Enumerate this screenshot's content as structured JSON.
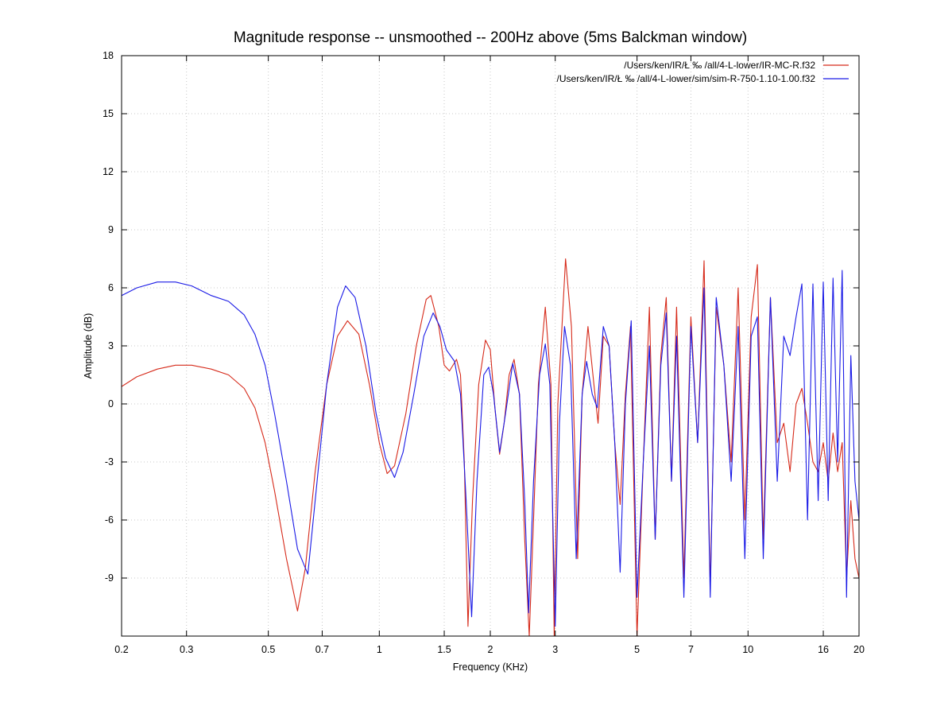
{
  "chart_data": {
    "type": "line",
    "title": "Magnitude response -- unsmoothed -- 200Hz above (5ms Balckman window)",
    "xlabel": "Frequency (KHz)",
    "ylabel": "Amplitude (dB)",
    "x_scale": "log",
    "xlim": [
      0.2,
      20
    ],
    "ylim": [
      -12,
      18
    ],
    "x_ticks": [
      0.2,
      0.3,
      0.5,
      0.7,
      1,
      1.5,
      2,
      3,
      5,
      7,
      10,
      16,
      20
    ],
    "x_tick_labels": [
      "0.2",
      "0.3",
      "0.5",
      "0.7",
      "1",
      "1.5",
      "2",
      "3",
      "5",
      "7",
      "10",
      "16",
      "20"
    ],
    "y_ticks": [
      -9,
      -6,
      -3,
      0,
      3,
      6,
      9,
      12,
      15,
      18
    ],
    "y_tick_labels": [
      "-9",
      "-6",
      "-3",
      "0",
      "3",
      "6",
      "9",
      "12",
      "15",
      "18"
    ],
    "grid": true,
    "legend_position": "top-right",
    "series": [
      {
        "name": "/Users/ken/IR/Ł      ‰  /all/4-L-lower/IR-MC-R.f32",
        "color": "#d62a1a",
        "points": [
          [
            0.2,
            0.9
          ],
          [
            0.22,
            1.4
          ],
          [
            0.25,
            1.8
          ],
          [
            0.28,
            2.0
          ],
          [
            0.31,
            2.0
          ],
          [
            0.35,
            1.8
          ],
          [
            0.39,
            1.5
          ],
          [
            0.43,
            0.8
          ],
          [
            0.46,
            -0.2
          ],
          [
            0.49,
            -2.0
          ],
          [
            0.52,
            -4.5
          ],
          [
            0.56,
            -8.0
          ],
          [
            0.6,
            -10.7
          ],
          [
            0.63,
            -8.5
          ],
          [
            0.67,
            -3.5
          ],
          [
            0.72,
            1.0
          ],
          [
            0.77,
            3.5
          ],
          [
            0.82,
            4.3
          ],
          [
            0.88,
            3.6
          ],
          [
            0.94,
            1.0
          ],
          [
            1.0,
            -2.0
          ],
          [
            1.05,
            -3.6
          ],
          [
            1.1,
            -3.2
          ],
          [
            1.18,
            -0.5
          ],
          [
            1.26,
            3.0
          ],
          [
            1.34,
            5.4
          ],
          [
            1.38,
            5.6
          ],
          [
            1.45,
            4.0
          ],
          [
            1.5,
            2.0
          ],
          [
            1.55,
            1.7
          ],
          [
            1.62,
            2.3
          ],
          [
            1.66,
            1.5
          ],
          [
            1.7,
            -3.0
          ],
          [
            1.74,
            -11.5
          ],
          [
            1.79,
            -5.0
          ],
          [
            1.86,
            1.0
          ],
          [
            1.94,
            3.3
          ],
          [
            2.0,
            2.8
          ],
          [
            2.06,
            -0.3
          ],
          [
            2.12,
            -2.6
          ],
          [
            2.18,
            -1.0
          ],
          [
            2.25,
            1.5
          ],
          [
            2.32,
            2.3
          ],
          [
            2.4,
            0.5
          ],
          [
            2.48,
            -7.0
          ],
          [
            2.55,
            -12.0
          ],
          [
            2.62,
            -6.0
          ],
          [
            2.7,
            1.0
          ],
          [
            2.82,
            5.0
          ],
          [
            2.92,
            1.0
          ],
          [
            2.98,
            -12.0
          ],
          [
            3.05,
            0.0
          ],
          [
            3.2,
            7.5
          ],
          [
            3.32,
            4.0
          ],
          [
            3.45,
            -8.0
          ],
          [
            3.55,
            0.5
          ],
          [
            3.68,
            4.0
          ],
          [
            3.82,
            1.0
          ],
          [
            3.92,
            -1.0
          ],
          [
            4.05,
            3.5
          ],
          [
            4.2,
            3.0
          ],
          [
            4.35,
            -2.0
          ],
          [
            4.5,
            -5.2
          ],
          [
            4.65,
            0.5
          ],
          [
            4.8,
            4.0
          ],
          [
            5.0,
            -12.0
          ],
          [
            5.2,
            -3.0
          ],
          [
            5.4,
            5.0
          ],
          [
            5.6,
            -7.0
          ],
          [
            5.8,
            2.5
          ],
          [
            6.0,
            5.5
          ],
          [
            6.2,
            -4.0
          ],
          [
            6.4,
            5.0
          ],
          [
            6.7,
            -9.0
          ],
          [
            7.0,
            4.5
          ],
          [
            7.3,
            -2.0
          ],
          [
            7.6,
            7.4
          ],
          [
            7.9,
            -9.5
          ],
          [
            8.2,
            5.0
          ],
          [
            8.6,
            2.0
          ],
          [
            9.0,
            -3.0
          ],
          [
            9.4,
            6.0
          ],
          [
            9.8,
            -6.0
          ],
          [
            10.2,
            4.5
          ],
          [
            10.6,
            7.2
          ],
          [
            11.0,
            -7.0
          ],
          [
            11.5,
            5.5
          ],
          [
            12.0,
            -2.0
          ],
          [
            12.5,
            -1.0
          ],
          [
            13.0,
            -3.5
          ],
          [
            13.5,
            0.0
          ],
          [
            14.0,
            0.8
          ],
          [
            14.5,
            -1.0
          ],
          [
            15.0,
            -3.0
          ],
          [
            15.5,
            -3.5
          ],
          [
            16.0,
            -2.0
          ],
          [
            16.5,
            -4.0
          ],
          [
            17.0,
            -1.5
          ],
          [
            17.5,
            -3.5
          ],
          [
            18.0,
            -2.0
          ],
          [
            18.5,
            -9.0
          ],
          [
            19.0,
            -5.0
          ],
          [
            19.5,
            -8.0
          ],
          [
            20.0,
            -9.0
          ]
        ]
      },
      {
        "name": "/Users/ken/IR/Ł      ‰  /all/4-L-lower/sim/sim-R-750-1.10-1.00.f32",
        "color": "#1a1ae6",
        "points": [
          [
            0.2,
            5.6
          ],
          [
            0.22,
            6.0
          ],
          [
            0.25,
            6.3
          ],
          [
            0.28,
            6.3
          ],
          [
            0.31,
            6.1
          ],
          [
            0.35,
            5.6
          ],
          [
            0.39,
            5.3
          ],
          [
            0.43,
            4.6
          ],
          [
            0.46,
            3.6
          ],
          [
            0.49,
            2.0
          ],
          [
            0.52,
            -0.5
          ],
          [
            0.56,
            -4.0
          ],
          [
            0.6,
            -7.5
          ],
          [
            0.64,
            -8.8
          ],
          [
            0.67,
            -5.0
          ],
          [
            0.72,
            1.0
          ],
          [
            0.77,
            5.0
          ],
          [
            0.81,
            6.1
          ],
          [
            0.86,
            5.5
          ],
          [
            0.92,
            3.0
          ],
          [
            0.98,
            -0.5
          ],
          [
            1.04,
            -2.8
          ],
          [
            1.1,
            -3.8
          ],
          [
            1.16,
            -2.5
          ],
          [
            1.24,
            0.5
          ],
          [
            1.32,
            3.5
          ],
          [
            1.4,
            4.7
          ],
          [
            1.46,
            4.0
          ],
          [
            1.52,
            2.8
          ],
          [
            1.6,
            2.2
          ],
          [
            1.66,
            0.5
          ],
          [
            1.72,
            -5.0
          ],
          [
            1.78,
            -11.0
          ],
          [
            1.84,
            -4.0
          ],
          [
            1.92,
            1.5
          ],
          [
            1.98,
            1.9
          ],
          [
            2.04,
            0.5
          ],
          [
            2.12,
            -2.5
          ],
          [
            2.2,
            -0.5
          ],
          [
            2.3,
            2.1
          ],
          [
            2.4,
            0.5
          ],
          [
            2.48,
            -5.0
          ],
          [
            2.54,
            -10.8
          ],
          [
            2.62,
            -4.0
          ],
          [
            2.72,
            1.5
          ],
          [
            2.82,
            3.1
          ],
          [
            2.9,
            1.0
          ],
          [
            3.0,
            -11.5
          ],
          [
            3.08,
            -1.0
          ],
          [
            3.18,
            4.0
          ],
          [
            3.3,
            2.0
          ],
          [
            3.42,
            -8.0
          ],
          [
            3.55,
            0.5
          ],
          [
            3.65,
            2.2
          ],
          [
            3.78,
            0.5
          ],
          [
            3.9,
            -0.2
          ],
          [
            4.05,
            4.0
          ],
          [
            4.2,
            3.0
          ],
          [
            4.35,
            -2.0
          ],
          [
            4.5,
            -8.7
          ],
          [
            4.65,
            0.0
          ],
          [
            4.82,
            4.3
          ],
          [
            5.0,
            -10.0
          ],
          [
            5.2,
            -3.0
          ],
          [
            5.4,
            3.0
          ],
          [
            5.6,
            -7.0
          ],
          [
            5.8,
            2.0
          ],
          [
            6.0,
            4.7
          ],
          [
            6.2,
            -4.0
          ],
          [
            6.4,
            3.5
          ],
          [
            6.7,
            -10.0
          ],
          [
            7.0,
            4.0
          ],
          [
            7.3,
            -2.0
          ],
          [
            7.6,
            6.0
          ],
          [
            7.9,
            -10.0
          ],
          [
            8.2,
            5.5
          ],
          [
            8.6,
            2.0
          ],
          [
            9.0,
            -4.0
          ],
          [
            9.4,
            4.0
          ],
          [
            9.8,
            -8.0
          ],
          [
            10.2,
            3.5
          ],
          [
            10.6,
            4.5
          ],
          [
            11.0,
            -8.0
          ],
          [
            11.5,
            5.5
          ],
          [
            12.0,
            -4.0
          ],
          [
            12.5,
            3.5
          ],
          [
            13.0,
            2.5
          ],
          [
            13.5,
            4.5
          ],
          [
            14.0,
            6.2
          ],
          [
            14.5,
            -6.0
          ],
          [
            15.0,
            6.2
          ],
          [
            15.5,
            -5.0
          ],
          [
            16.0,
            6.3
          ],
          [
            16.5,
            -5.0
          ],
          [
            17.0,
            6.5
          ],
          [
            17.5,
            -3.0
          ],
          [
            18.0,
            6.9
          ],
          [
            18.5,
            -10.0
          ],
          [
            19.0,
            2.5
          ],
          [
            19.5,
            -4.0
          ],
          [
            20.0,
            -6.0
          ]
        ]
      }
    ]
  }
}
